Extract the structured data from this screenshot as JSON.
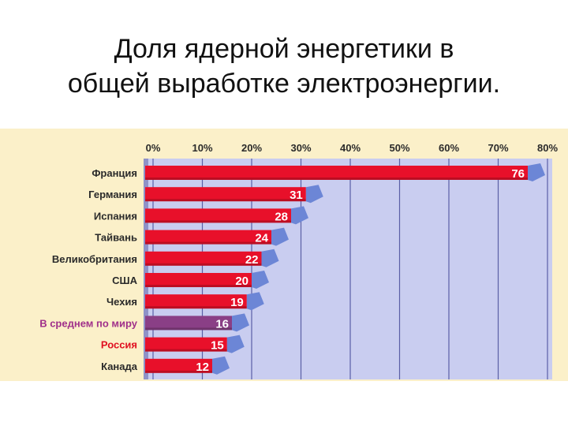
{
  "title_lines": [
    "Доля ядерной энергетики в",
    "общей выработке электроэнергии."
  ],
  "colors": {
    "panel_bg": "#fbf0c9",
    "plot_bg": "#c9cdf0",
    "grid": "#5a5fa6",
    "bar_default": "#e8102a",
    "bar_world": "#8a3f86",
    "label_default": "#2a2a2a",
    "label_world": "#a0308a",
    "label_russia": "#e01020",
    "bar_end_cap": "#6c86d6"
  },
  "chart_data": {
    "type": "bar",
    "orientation": "horizontal",
    "title": "",
    "xlabel": "",
    "ylabel": "",
    "xlim": [
      0,
      80
    ],
    "ticks": [
      "0%",
      "10%",
      "20%",
      "30%",
      "40%",
      "50%",
      "60%",
      "70%",
      "80%"
    ],
    "categories": [
      "Франция",
      "Германия",
      "Испания",
      "Тайвань",
      "Великобритания",
      "США",
      "Чехия",
      "В среднем по миру",
      "Россия",
      "Канада"
    ],
    "values": [
      76,
      31,
      28,
      24,
      22,
      20,
      19,
      16,
      15,
      12
    ],
    "highlight": {
      "В среднем по миру": "world",
      "Россия": "russia"
    },
    "grid": true,
    "legend": "none"
  }
}
